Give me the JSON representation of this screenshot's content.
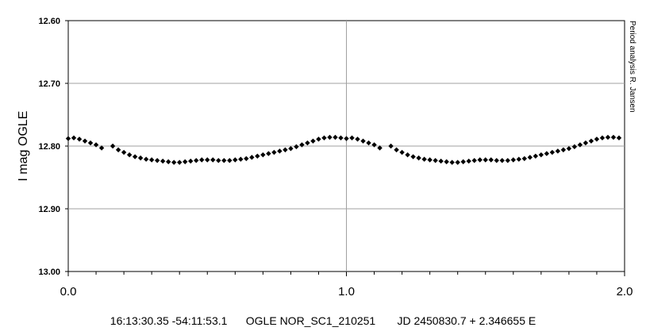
{
  "chart_data": {
    "type": "scatter",
    "title": "",
    "xlabel": "",
    "ylabel": "I mag OGLE",
    "xlim": [
      0.0,
      2.0
    ],
    "ylim": [
      12.6,
      13.0
    ],
    "y_inverted": true,
    "x_ticks": [
      "0.0",
      "1.0",
      "2.0"
    ],
    "y_ticks": [
      "12.60",
      "12.70",
      "12.80",
      "12.90",
      "13.00"
    ],
    "grid": true,
    "marker": "diamond",
    "marker_color": "#000000",
    "side_note": "Period analysis  R. Jansen",
    "caption": {
      "coords": "16:13:30.35 -54:11:53.1",
      "star": "OGLE NOR_SC1_210251",
      "ephemeris": "JD 2450830.7 + 2.346655 E"
    },
    "series": [
      {
        "phase": [
          0.0,
          0.02,
          0.04,
          0.06,
          0.08,
          0.1,
          0.12,
          0.16,
          0.18,
          0.2,
          0.22,
          0.24,
          0.26,
          0.28,
          0.3,
          0.32,
          0.34,
          0.36,
          0.38,
          0.4,
          0.42,
          0.44,
          0.46,
          0.48,
          0.5,
          0.52,
          0.54,
          0.56,
          0.58,
          0.6,
          0.62,
          0.64,
          0.66,
          0.68,
          0.7,
          0.72,
          0.74,
          0.76,
          0.78,
          0.8,
          0.82,
          0.84,
          0.86,
          0.88,
          0.9,
          0.92,
          0.94,
          0.96,
          0.98
        ],
        "mag": [
          12.788,
          12.787,
          12.789,
          12.792,
          12.795,
          12.798,
          12.803,
          12.8,
          12.806,
          12.81,
          12.814,
          12.817,
          12.819,
          12.821,
          12.822,
          12.823,
          12.824,
          12.825,
          12.826,
          12.826,
          12.825,
          12.824,
          12.823,
          12.822,
          12.822,
          12.822,
          12.823,
          12.823,
          12.823,
          12.822,
          12.821,
          12.82,
          12.818,
          12.816,
          12.814,
          12.812,
          12.81,
          12.808,
          12.806,
          12.804,
          12.801,
          12.798,
          12.795,
          12.792,
          12.789,
          12.787,
          12.786,
          12.786,
          12.787
        ]
      }
    ]
  }
}
